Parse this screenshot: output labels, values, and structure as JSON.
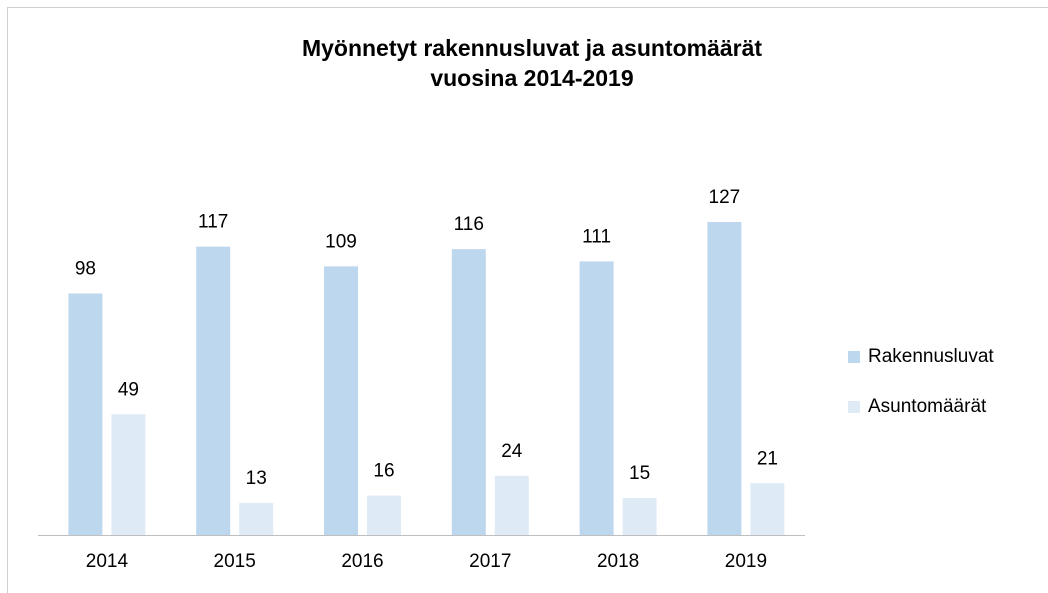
{
  "chart_data": {
    "type": "bar",
    "title": [
      "Myönnetyt rakennusluvat ja asuntomäärät",
      "vuosina 2014-2019"
    ],
    "categories": [
      "2014",
      "2015",
      "2016",
      "2017",
      "2018",
      "2019"
    ],
    "series": [
      {
        "name": "Rakennusluvat",
        "color": "#bdd7ee",
        "values": [
          98,
          117,
          109,
          116,
          111,
          127
        ]
      },
      {
        "name": "Asuntomäärät",
        "color": "#deebf7",
        "values": [
          49,
          13,
          16,
          24,
          15,
          21
        ]
      }
    ],
    "legend": "right"
  }
}
